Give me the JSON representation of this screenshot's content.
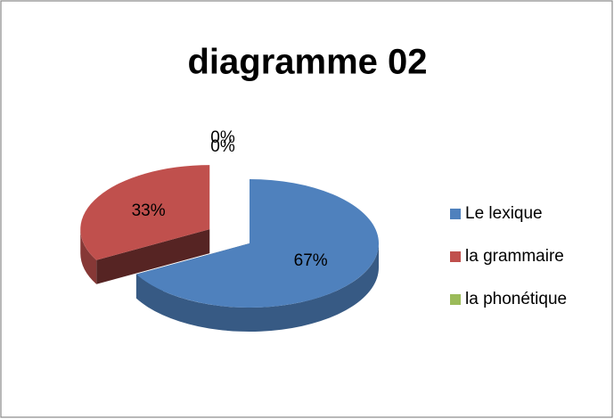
{
  "chart_data": {
    "type": "pie",
    "title": "diagramme 02",
    "categories": [
      "Le lexique",
      "la grammaire",
      "la phonétique",
      null
    ],
    "values": [
      67,
      33,
      0,
      0
    ],
    "value_labels": [
      "67%",
      "33%",
      "0%",
      "0%"
    ],
    "colors": [
      "#4f81bd",
      "#c0504d",
      "#9bbb59",
      "#8064a2"
    ],
    "exploded": [
      false,
      true,
      false,
      false
    ],
    "legend": "right"
  }
}
